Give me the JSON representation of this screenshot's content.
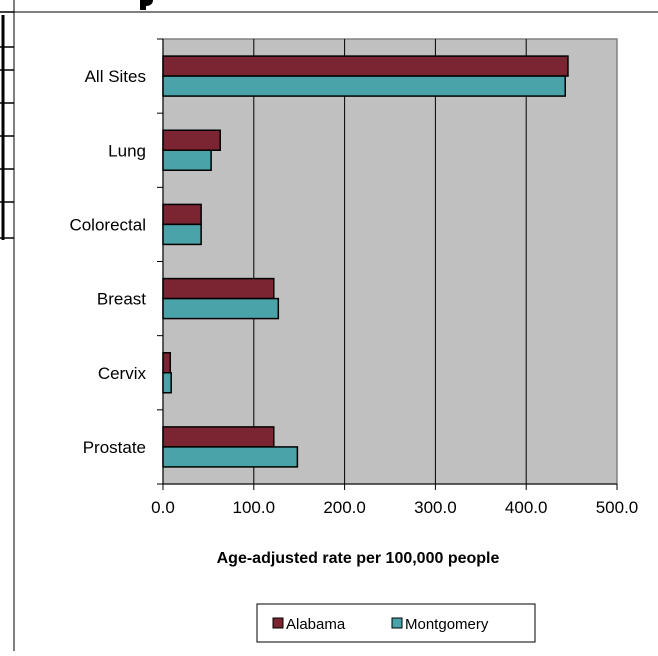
{
  "chart_data": {
    "type": "bar",
    "orientation": "horizontal",
    "categories": [
      "All Sites",
      "Lung",
      "Colorectal",
      "Breast",
      "Cervix",
      "Prostate"
    ],
    "series": [
      {
        "name": "Alabama",
        "values": [
          446,
          63,
          42,
          122,
          8,
          122
        ]
      },
      {
        "name": "Montgomery",
        "values": [
          443,
          53,
          42,
          127,
          9,
          148
        ]
      }
    ],
    "xlabel": "Age-adjusted rate per 100,000 people",
    "xlim": [
      0,
      500
    ],
    "x_ticks": [
      "0.0",
      "100.0",
      "200.0",
      "300.0",
      "400.0",
      "500.0"
    ],
    "grid": true,
    "legend_position": "bottom",
    "colors": {
      "Alabama": "#7b2432",
      "Montgomery": "#4aa3a8",
      "plot_bg": "#c0c0c0"
    }
  }
}
